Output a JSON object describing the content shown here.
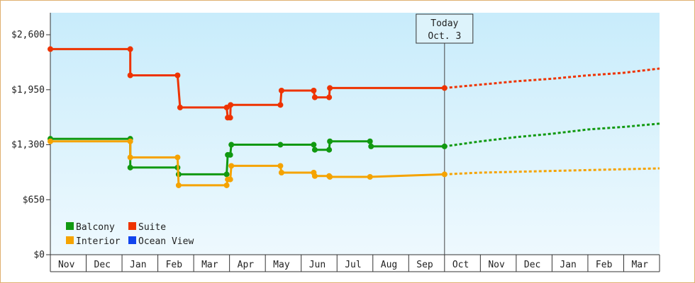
{
  "chart_data": {
    "type": "line",
    "title": "",
    "xlabel": "",
    "ylabel": "",
    "ylim": [
      0,
      2860
    ],
    "y_ticks": [
      {
        "value": 0,
        "label": "$0"
      },
      {
        "value": 650,
        "label": "$650"
      },
      {
        "value": 1300,
        "label": "$1,300"
      },
      {
        "value": 1950,
        "label": "$1,950"
      },
      {
        "value": 2600,
        "label": "$2,600"
      }
    ],
    "categories": [
      "Nov",
      "Dec",
      "Jan",
      "Feb",
      "Mar",
      "Apr",
      "May",
      "Jun",
      "Jul",
      "Aug",
      "Sep",
      "Oct",
      "Nov",
      "Dec",
      "Jan",
      "Feb",
      "Mar"
    ],
    "today": {
      "line1": "Today",
      "line2": "Oct. 3",
      "x": 11.0
    },
    "x_max": 17.0,
    "legend": {
      "placement": "bottom-left",
      "items": [
        {
          "name": "Balcony",
          "color": "#119911"
        },
        {
          "name": "Suite",
          "color": "#ee3300"
        },
        {
          "name": "Interior",
          "color": "#f5a300"
        },
        {
          "name": "Ocean View",
          "color": "#1144ee"
        }
      ]
    },
    "series": [
      {
        "name": "Suite",
        "color": "#ee3300",
        "points": [
          [
            0.0,
            2430
          ],
          [
            2.23,
            2430
          ],
          [
            2.23,
            2120
          ],
          [
            3.55,
            2120
          ],
          [
            3.62,
            1740
          ],
          [
            4.92,
            1740
          ],
          [
            4.95,
            1620
          ],
          [
            5.02,
            1620
          ],
          [
            5.03,
            1770
          ],
          [
            6.42,
            1770
          ],
          [
            6.45,
            1940
          ],
          [
            7.35,
            1940
          ],
          [
            7.38,
            1860
          ],
          [
            7.78,
            1860
          ],
          [
            7.8,
            1970
          ],
          [
            11.0,
            1970
          ]
        ],
        "markers": [
          [
            0.0,
            2430
          ],
          [
            2.23,
            2430
          ],
          [
            2.23,
            2120
          ],
          [
            3.55,
            2120
          ],
          [
            3.62,
            1740
          ],
          [
            4.92,
            1740
          ],
          [
            4.95,
            1620
          ],
          [
            5.02,
            1620
          ],
          [
            5.03,
            1770
          ],
          [
            6.42,
            1770
          ],
          [
            6.45,
            1940
          ],
          [
            7.35,
            1940
          ],
          [
            7.38,
            1860
          ],
          [
            7.78,
            1860
          ],
          [
            7.8,
            1970
          ],
          [
            11.0,
            1970
          ]
        ],
        "forecast": [
          [
            11.0,
            1970
          ],
          [
            12.0,
            2010
          ],
          [
            13.0,
            2050
          ],
          [
            14.0,
            2080
          ],
          [
            15.0,
            2120
          ],
          [
            16.0,
            2150
          ],
          [
            17.0,
            2200
          ]
        ]
      },
      {
        "name": "Balcony",
        "color": "#119911",
        "points": [
          [
            0.0,
            1370
          ],
          [
            2.23,
            1370
          ],
          [
            2.23,
            1030
          ],
          [
            3.55,
            1030
          ],
          [
            3.58,
            950
          ],
          [
            4.92,
            950
          ],
          [
            4.95,
            1180
          ],
          [
            5.02,
            1180
          ],
          [
            5.05,
            1300
          ],
          [
            6.42,
            1300
          ],
          [
            7.35,
            1300
          ],
          [
            7.38,
            1240
          ],
          [
            7.78,
            1240
          ],
          [
            7.8,
            1340
          ],
          [
            8.92,
            1340
          ],
          [
            8.95,
            1280
          ],
          [
            11.0,
            1280
          ]
        ],
        "markers": [
          [
            0.0,
            1370
          ],
          [
            2.23,
            1370
          ],
          [
            2.23,
            1030
          ],
          [
            3.55,
            1030
          ],
          [
            3.58,
            950
          ],
          [
            4.92,
            950
          ],
          [
            4.95,
            1180
          ],
          [
            5.02,
            1180
          ],
          [
            5.05,
            1300
          ],
          [
            6.42,
            1300
          ],
          [
            7.35,
            1300
          ],
          [
            7.38,
            1240
          ],
          [
            7.78,
            1240
          ],
          [
            7.8,
            1340
          ],
          [
            8.92,
            1340
          ],
          [
            8.95,
            1280
          ],
          [
            11.0,
            1280
          ]
        ],
        "forecast": [
          [
            11.0,
            1280
          ],
          [
            12.0,
            1340
          ],
          [
            13.0,
            1390
          ],
          [
            14.0,
            1430
          ],
          [
            15.0,
            1480
          ],
          [
            16.0,
            1510
          ],
          [
            17.0,
            1550
          ]
        ]
      },
      {
        "name": "Interior",
        "color": "#f5a300",
        "points": [
          [
            0.0,
            1340
          ],
          [
            2.23,
            1340
          ],
          [
            2.23,
            1150
          ],
          [
            3.55,
            1150
          ],
          [
            3.58,
            820
          ],
          [
            4.92,
            820
          ],
          [
            4.95,
            890
          ],
          [
            5.02,
            890
          ],
          [
            5.05,
            1050
          ],
          [
            6.42,
            1050
          ],
          [
            6.45,
            970
          ],
          [
            7.35,
            970
          ],
          [
            7.38,
            930
          ],
          [
            7.78,
            930
          ],
          [
            7.8,
            920
          ],
          [
            8.92,
            920
          ],
          [
            11.0,
            950
          ]
        ],
        "markers": [
          [
            0.0,
            1340
          ],
          [
            2.23,
            1340
          ],
          [
            2.23,
            1150
          ],
          [
            3.55,
            1150
          ],
          [
            3.58,
            820
          ],
          [
            4.92,
            820
          ],
          [
            4.95,
            890
          ],
          [
            5.02,
            890
          ],
          [
            5.05,
            1050
          ],
          [
            6.42,
            1050
          ],
          [
            6.45,
            970
          ],
          [
            7.35,
            970
          ],
          [
            7.38,
            930
          ],
          [
            7.78,
            930
          ],
          [
            7.8,
            920
          ],
          [
            8.92,
            920
          ],
          [
            11.0,
            950
          ]
        ],
        "forecast": [
          [
            11.0,
            950
          ],
          [
            12.0,
            970
          ],
          [
            13.0,
            980
          ],
          [
            14.0,
            990
          ],
          [
            15.0,
            1000
          ],
          [
            16.0,
            1010
          ],
          [
            17.0,
            1020
          ]
        ]
      }
    ]
  }
}
